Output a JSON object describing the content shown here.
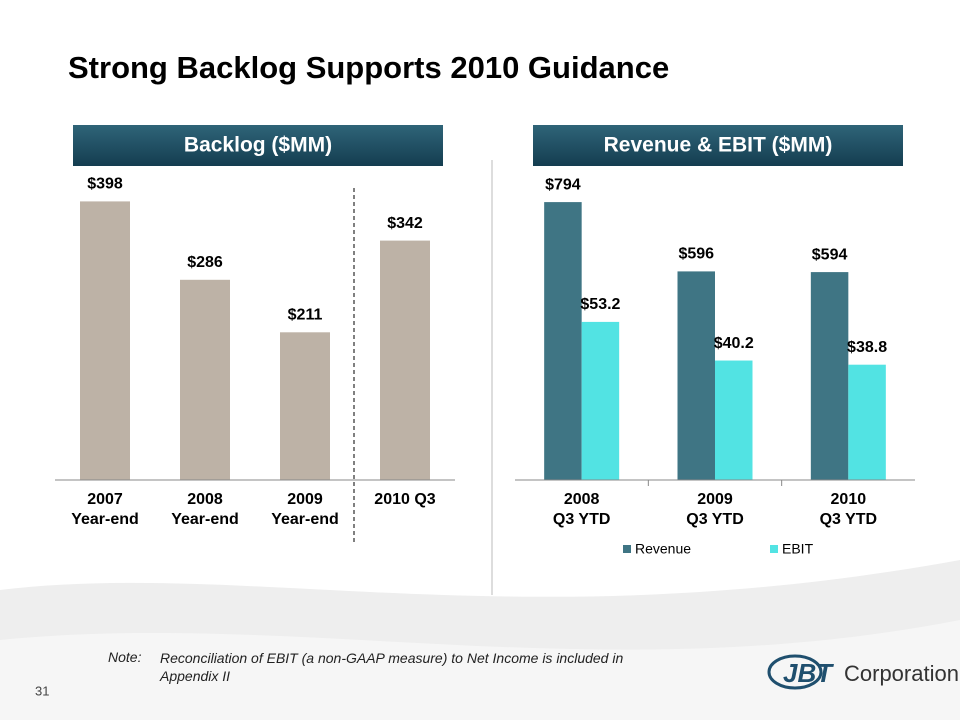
{
  "slide": {
    "title": "Strong Backlog Supports 2010 Guidance",
    "note_label": "Note:",
    "note": "Reconciliation of EBIT (a non-GAAP measure) to Net Income is included in\nAppendix II",
    "page_number": "31",
    "logo": {
      "mark": "JBT",
      "name": "Corporation"
    }
  },
  "chart_data": [
    {
      "type": "bar",
      "title": "Backlog ($MM)",
      "categories": [
        "2007\nYear-end",
        "2008\nYear-end",
        "2009\nYear-end",
        "2010 Q3"
      ],
      "values": [
        398,
        286,
        211,
        342
      ],
      "value_labels": [
        "$398",
        "$286",
        "$211",
        "$342"
      ],
      "color": "#bdb2a6",
      "ylim": [
        0,
        450
      ]
    },
    {
      "type": "bar",
      "title": "Revenue & EBIT ($MM)",
      "categories": [
        "2008\nQ3 YTD",
        "2009\nQ3 YTD",
        "2010\nQ3 YTD"
      ],
      "series": [
        {
          "name": "Revenue",
          "color": "#3f7584",
          "values": [
            794,
            596,
            594
          ],
          "value_labels": [
            "$794",
            "$596",
            "$594"
          ]
        },
        {
          "name": "EBIT",
          "color": "#52e3e3",
          "axis": "y2",
          "values": [
            53.2,
            40.2,
            38.8
          ],
          "value_labels": [
            "$53.2",
            "$40.2",
            "$38.8"
          ]
        }
      ],
      "ylim": [
        0,
        900
      ],
      "y2lim": [
        0,
        106
      ],
      "legend": "bottom"
    }
  ]
}
